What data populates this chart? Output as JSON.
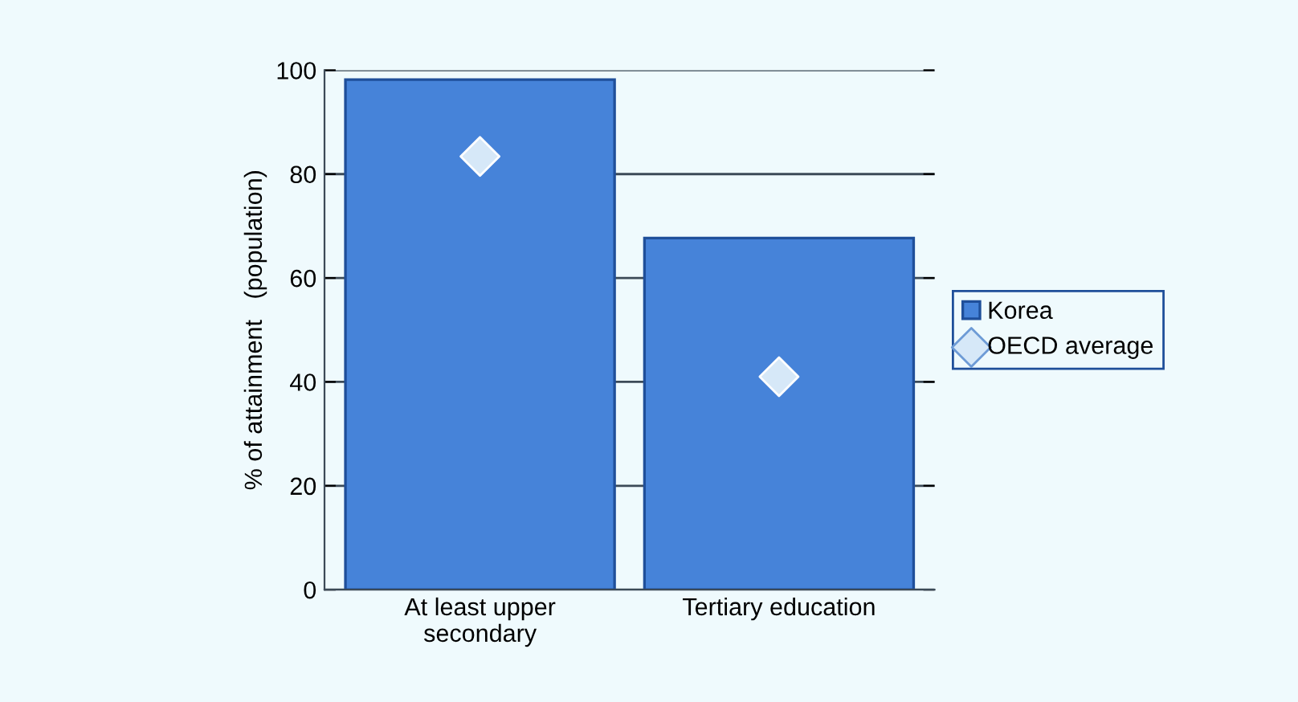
{
  "chart_data": {
    "type": "bar",
    "ylabel": "% of attainment   (population)",
    "categories": [
      "At least upper\nsecondary",
      "Tertiary education"
    ],
    "series": [
      {
        "name": "Korea",
        "color": "#4683d9",
        "values": [
          98.2,
          67.7
        ]
      },
      {
        "name": "OECD average",
        "type": "scatter",
        "color": "#d6e8f8",
        "marker": "diamond",
        "values": [
          83.4,
          41.0
        ]
      }
    ],
    "ylim": [
      0,
      100
    ],
    "yticks": [
      0,
      20,
      40,
      60,
      80,
      100
    ],
    "grid": "y",
    "legend": "right"
  }
}
